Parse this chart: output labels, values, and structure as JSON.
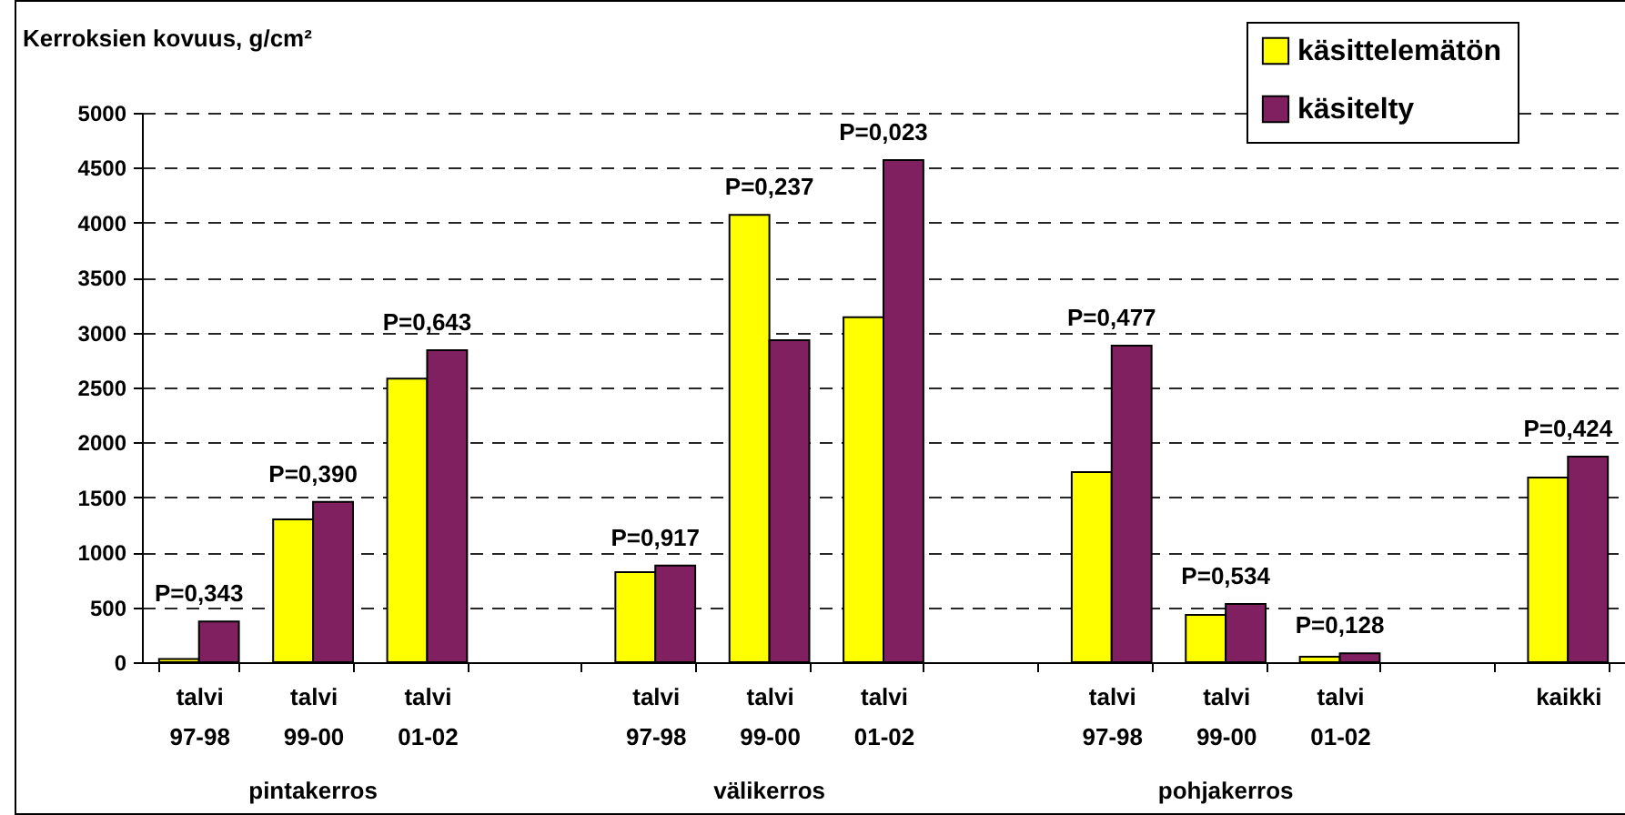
{
  "chart_data": {
    "type": "bar",
    "ylabel": "Kerroksien kovuus, g/cm²",
    "categories": [
      "talvi\n97-98",
      "talvi\n99-00",
      "talvi\n01-02",
      null,
      "talvi\n97-98",
      "talvi\n99-00",
      "talvi\n01-02",
      null,
      "talvi\n97-98",
      "talvi\n99-00",
      "talvi\n01-02",
      null,
      "kaikki"
    ],
    "series": [
      {
        "name": "käsittelemätön",
        "color": "#ffff00",
        "values": [
          30,
          1300,
          2580,
          null,
          820,
          4070,
          3140,
          null,
          1730,
          430,
          50,
          null,
          1680
        ]
      },
      {
        "name": "käsitelty",
        "color": "#802060",
        "values": [
          370,
          1460,
          2840,
          null,
          880,
          2930,
          4570,
          null,
          2880,
          530,
          80,
          null,
          1870
        ]
      }
    ],
    "annotations": [
      "P=0,343",
      "P=0,390",
      "P=0,643",
      "P=0,917",
      "P=0,237",
      "P=0,023",
      "P=0,477",
      "P=0,534",
      "P=0,128",
      "P=0,424",
      "pintakerros",
      "välikerros",
      "pohjakerros"
    ],
    "ylim": [
      0,
      5000
    ],
    "yticks": [
      0,
      500,
      1000,
      1500,
      2000,
      2500,
      3000,
      3500,
      4000,
      4500,
      5000
    ],
    "grid": "y",
    "legend": "top right"
  }
}
